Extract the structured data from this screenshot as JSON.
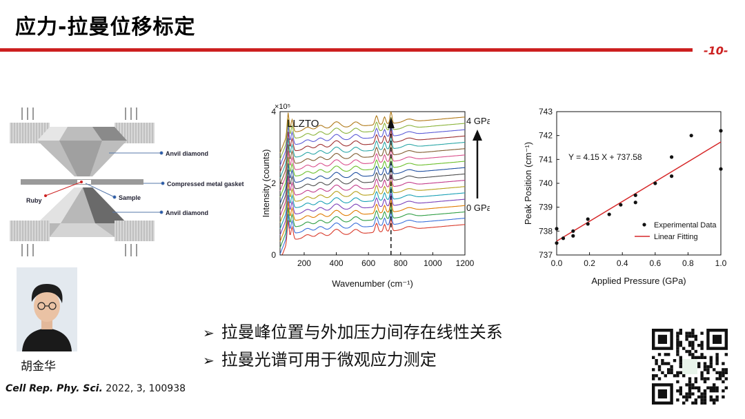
{
  "slide": {
    "title": "应力-拉曼位移标定",
    "page_number": "-10-",
    "accent_color": "#cc1f1f"
  },
  "diagram": {
    "labels": {
      "anvil_top": "Anvil diamond",
      "gasket": "Compressed metal gasket",
      "ruby": "Ruby",
      "sample": "Sample",
      "anvil_bottom": "Anvil diamond"
    }
  },
  "person": {
    "name": "胡金华"
  },
  "citation": {
    "journal": "Cell Rep. Phy. Sci.",
    "rest": " 2022, 3, 100938"
  },
  "bullets": [
    "拉曼峰位置与外加压力间存在线性关系",
    "拉曼光谱可用于微观应力测定"
  ],
  "chart_data": [
    {
      "type": "line",
      "annotation": "LLZTO",
      "xlabel": "Wavenumber (cm⁻¹)",
      "ylabel": "Intensity (counts)",
      "y_multiplier": "×10⁵",
      "xlim": [
        50,
        1200
      ],
      "ylim": [
        0,
        4
      ],
      "x_ticks": [
        200,
        400,
        600,
        800,
        1000,
        1200
      ],
      "y_ticks": [
        0,
        2,
        4
      ],
      "pressure_labels": {
        "top": "4 GPa",
        "bottom": "0 GPa"
      },
      "dashed_line_x": 740,
      "series_count": 18,
      "series_colors": [
        "#d93a2b",
        "#3a6fd9",
        "#2f9e44",
        "#e07b00",
        "#7a3fb8",
        "#19a0b5",
        "#b5a019",
        "#c23a8a",
        "#4d4d4d",
        "#1f4fa0",
        "#6bbf2b",
        "#d94f8c",
        "#7f5a2e",
        "#2aa6a6",
        "#9e2f2f",
        "#5b5bd6",
        "#8ab33a",
        "#b07a19"
      ]
    },
    {
      "type": "scatter",
      "xlabel": "Applied Pressure (GPa)",
      "ylabel": "Peak Position (cm⁻¹)",
      "xlim": [
        0.0,
        1.0
      ],
      "ylim": [
        737,
        743
      ],
      "x_ticks": [
        0.0,
        0.2,
        0.4,
        0.6,
        0.8,
        1.0
      ],
      "y_ticks": [
        737,
        738,
        739,
        740,
        741,
        742,
        743
      ],
      "equation": "Y = 4.15 X + 737.58",
      "fit": {
        "slope": 4.15,
        "intercept": 737.58,
        "color": "#d62728"
      },
      "legend": [
        "Experimental Data",
        "Linear Fitting"
      ],
      "legend_position": "bottom-right",
      "points": [
        [
          0.0,
          737.5
        ],
        [
          0.0,
          738.1
        ],
        [
          0.04,
          737.7
        ],
        [
          0.1,
          737.8
        ],
        [
          0.1,
          738.0
        ],
        [
          0.19,
          738.3
        ],
        [
          0.19,
          738.5
        ],
        [
          0.32,
          738.7
        ],
        [
          0.39,
          739.1
        ],
        [
          0.48,
          739.2
        ],
        [
          0.48,
          739.5
        ],
        [
          0.6,
          740.0
        ],
        [
          0.7,
          740.3
        ],
        [
          0.7,
          741.1
        ],
        [
          0.82,
          742.0
        ],
        [
          1.0,
          742.2
        ],
        [
          1.0,
          740.6
        ]
      ]
    }
  ]
}
